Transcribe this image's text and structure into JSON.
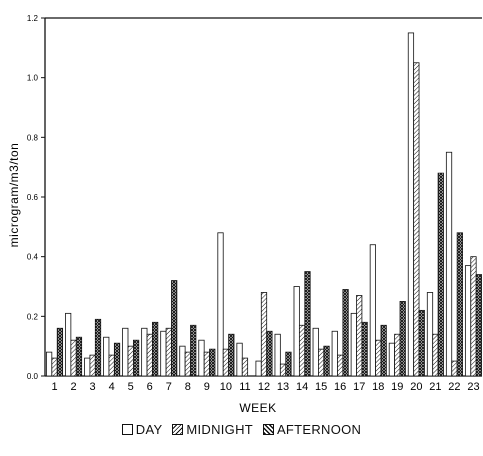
{
  "chart_data": {
    "type": "bar",
    "title": "",
    "xlabel": "WEEK",
    "ylabel": "microgram/m3/ton",
    "ylim": [
      0,
      1.2
    ],
    "yticks": [
      "0.0",
      "0.2",
      "0.4",
      "0.6",
      "0.8",
      "1.0",
      "1.2"
    ],
    "categories": [
      "1",
      "2",
      "3",
      "4",
      "5",
      "6",
      "7",
      "8",
      "9",
      "10",
      "11",
      "12",
      "13",
      "14",
      "15",
      "16",
      "17",
      "18",
      "19",
      "20",
      "21",
      "22",
      "23"
    ],
    "series": [
      {
        "name": "DAY",
        "pattern": "open",
        "values": [
          0.08,
          0.21,
          0.06,
          0.13,
          0.16,
          0.16,
          0.15,
          0.1,
          0.12,
          0.48,
          0.11,
          0.05,
          0.14,
          0.3,
          0.16,
          0.15,
          0.21,
          0.44,
          0.11,
          1.15,
          0.28,
          0.75,
          0.37
        ]
      },
      {
        "name": "MIDNIGHT",
        "pattern": "hatched",
        "values": [
          0.06,
          0.12,
          0.07,
          0.07,
          0.1,
          0.14,
          0.16,
          0.08,
          0.08,
          0.09,
          0.06,
          0.28,
          0.04,
          0.17,
          0.09,
          0.07,
          0.27,
          0.12,
          0.14,
          1.05,
          0.14,
          0.05,
          0.4
        ]
      },
      {
        "name": "AFTERNOON",
        "pattern": "crosshatched",
        "values": [
          0.16,
          0.13,
          0.19,
          0.11,
          0.12,
          0.18,
          0.32,
          0.17,
          0.09,
          0.14,
          0.0,
          0.15,
          0.08,
          0.35,
          0.1,
          0.29,
          0.18,
          0.17,
          0.25,
          0.22,
          0.68,
          0.48,
          0.34
        ]
      }
    ],
    "legend": {
      "position": "bottom",
      "items": [
        "DAY",
        "MIDNIGHT",
        "AFTERNOON"
      ]
    },
    "grid": false
  }
}
